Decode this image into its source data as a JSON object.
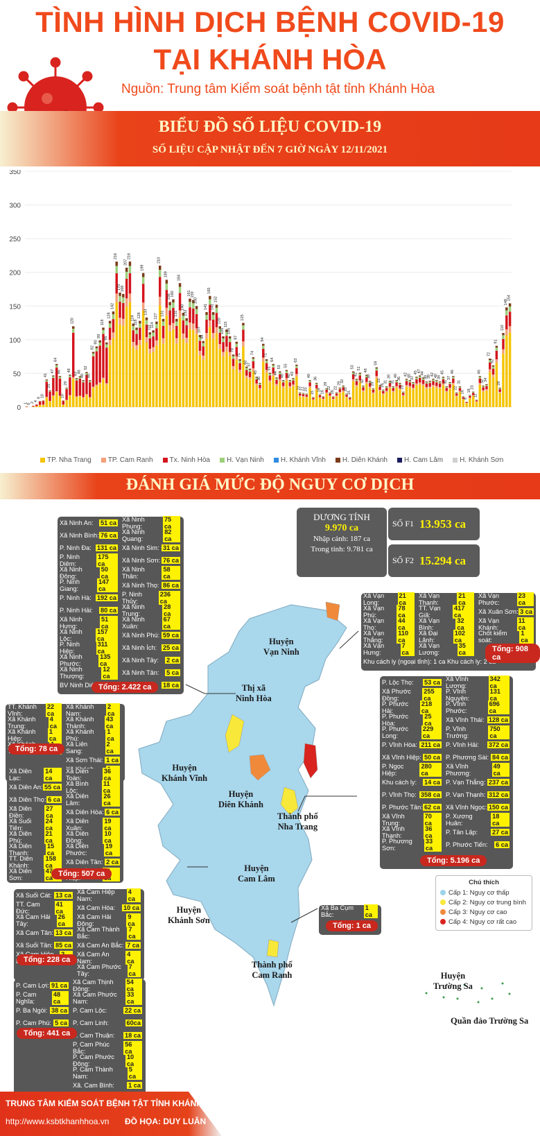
{
  "header": {
    "title_line1": "TÌNH HÌNH DỊCH BỆNH COVID-19",
    "title_line2": "TẠI KHÁNH HÒA",
    "source": "Nguồn: Trung tâm Kiểm soát bệnh tật tỉnh Khánh Hòa"
  },
  "section1": {
    "title": "BIỂU ĐỒ SỐ LIỆU COVID-19",
    "subtitle": "SỐ LIỆU CẬP NHẬT ĐẾN 7 GIỜ NGÀY 12/11/2021"
  },
  "chart_data": {
    "type": "bar",
    "stacked": true,
    "ylim": [
      0,
      350
    ],
    "yticks": [
      0,
      50,
      100,
      150,
      200,
      250,
      300,
      350
    ],
    "grid": true,
    "legend_position": "bottom",
    "legend": [
      "TP. Nha Trang",
      "TP. Cam Ranh",
      "Tx. Ninh Hòa",
      "H. Vạn Ninh",
      "H. Khánh Vĩnh",
      "H. Diên Khánh",
      "H. Cam Lâm",
      "H. Khánh Sơn"
    ],
    "colors": [
      "#f5c400",
      "#f4a07a",
      "#d4151e",
      "#9ccf7a",
      "#2f8be0",
      "#7a3b1a",
      "#1a1a5e",
      "#cfcfcf"
    ],
    "totals": [
      1,
      0,
      2,
      4,
      9,
      10,
      41,
      25,
      47,
      64,
      46,
      10,
      29,
      48,
      120,
      43,
      46,
      40,
      52,
      40,
      82,
      90,
      99,
      118,
      96,
      128,
      142,
      216,
      170,
      168,
      207,
      216,
      124,
      118,
      128,
      199,
      133,
      111,
      114,
      127,
      210,
      131,
      189,
      156,
      160,
      131,
      184,
      140,
      132,
      161,
      159,
      150,
      107,
      98,
      141,
      165,
      141,
      152,
      120,
      105,
      115,
      105,
      78,
      97,
      71,
      125,
      60,
      57,
      74,
      45,
      36,
      94,
      71,
      51,
      64,
      44,
      53,
      40,
      55,
      40,
      43,
      63,
      22,
      21,
      20,
      40,
      15,
      36,
      19,
      16,
      28,
      22,
      16,
      22,
      29,
      32,
      20,
      15,
      53,
      42,
      51,
      32,
      48,
      39,
      28,
      59,
      33,
      26,
      31,
      39,
      31,
      40,
      36,
      23,
      42,
      40,
      37,
      45,
      47,
      44,
      38,
      39,
      42,
      40,
      38,
      45,
      31,
      37,
      46,
      22,
      31,
      16,
      8,
      18,
      23,
      11,
      46,
      32,
      34,
      72,
      62,
      91,
      29,
      110,
      148,
      154
    ],
    "top_labels_note": "values printed above bars"
  },
  "section2": {
    "title": "ĐÁNH GIÁ MỨC ĐỘ NGUY CƠ DỊCH"
  },
  "stats": {
    "positive_label": "DƯƠNG TÍNH",
    "positive_value": "9.970 ca",
    "imported": "Nhập cảnh: 187 ca",
    "local": "Trong tỉnh: 9.781 ca",
    "f1_label": "SỐ F1",
    "f1_value": "13.953 ca",
    "f2_label": "SỐ F2",
    "f2_value": "15.294 ca"
  },
  "ninhhoa": {
    "rows": [
      [
        "Xã Ninh An:",
        "51 ca",
        "Xã Ninh Phụng:",
        "75 ca"
      ],
      [
        "Xã Ninh Bình:",
        "76 ca",
        "Xã Ninh Quang:",
        "82 ca"
      ],
      [
        "P. Ninh Đa:",
        "131 ca",
        "Xã Ninh Sim:",
        "31 ca"
      ],
      [
        "P. Ninh Diêm:",
        "175 ca",
        "Xã Ninh Sơn:",
        "76 ca"
      ],
      [
        "Xã Ninh Đông:",
        "50 ca",
        "Xã Ninh Thân:",
        "58 ca"
      ],
      [
        "P. Ninh Giang:",
        "147 ca",
        "Xã Ninh Thọ:",
        "86 ca"
      ],
      [
        "P. Ninh Hà:",
        "192 ca",
        "P. Ninh Thủy:",
        "236 ca"
      ],
      [
        "P. Ninh Hải:",
        "80 ca",
        "Xã Ninh Trung:",
        "28 ca"
      ],
      [
        "Xã Ninh Hưng:",
        "51 ca",
        "Xã Ninh Xuân:",
        "67 ca"
      ],
      [
        "Xã Ninh Lộc:",
        "157 ca",
        "Xã Ninh Phú:",
        "59 ca"
      ],
      [
        "P. Ninh Hiệp:",
        "311 ca",
        "Xã Ninh Ích:",
        "25 ca"
      ],
      [
        "Xã Ninh Phước:",
        "135 ca",
        "Xã Ninh Tây:",
        "2 ca"
      ],
      [
        "Xã Ninh Thượng:",
        "12 ca",
        "Xã Ninh Tân:",
        "5 ca"
      ],
      [
        "BV Ninh Diêm:",
        "6 ca",
        "Ninh Vân:",
        "18 ca"
      ]
    ],
    "total": "Tổng: 2.422 ca"
  },
  "vanninh": {
    "rows": [
      [
        "Xã Vạn Long:",
        "21 ca",
        "Xã Vạn Thạnh:",
        "21 ca",
        "Xã Vạn Phước:",
        "23 ca"
      ],
      [
        "Xã Vạn Phú:",
        "78 ca",
        "TT. Vạn Giã:",
        "417 ca",
        "Xã Xuân Sơn:",
        "3 ca"
      ],
      [
        "Xã Vạn Thọ:",
        "44 ca",
        "Xã Vạn Bình:",
        "32 ca",
        "Xã Vạn Khánh:",
        "11 ca"
      ],
      [
        "Xã Vạn Thắng:",
        "110 ca",
        "Xã Đại Lãnh:",
        "102 ca",
        "Chốt kiểm soát:",
        "1 ca"
      ],
      [
        "Xã Vạn Hưng:",
        "7 ca",
        "Xã Vạn Lương:",
        "35 ca",
        "",
        ""
      ]
    ],
    "last_row": "Khu cách ly (ngoại tỉnh): 1 ca   Khu cách ly: 2 ca",
    "total": "Tổng: 908 ca"
  },
  "khanhvinh": {
    "rows": [
      [
        "TT. Khánh Vĩnh:",
        "22 ca",
        "Xã Khánh Nam:",
        "2 ca"
      ],
      [
        "Xã Khánh Trung:",
        "4 ca",
        "Xã Khánh Thành:",
        "43 ca"
      ],
      [
        "Xã Khánh Hiệp:",
        "1 ca",
        "Xã Khánh Phú:",
        "1 ca"
      ],
      [
        "Xã Khánh Thượng:",
        "1 ca",
        "Xã Liên Sang:",
        "2 ca"
      ],
      [
        "",
        "",
        "Xã Sơn Thái:",
        "1 ca"
      ],
      [
        "",
        "",
        "Xã Khánh Bình:",
        "1 ca"
      ]
    ],
    "total": "Tổng: 78 ca"
  },
  "dienkhanh": {
    "rows": [
      [
        "Xã Diên Lạc:",
        "14 ca",
        "Xã Diên Toàn:",
        "36 ca"
      ],
      [
        "Xã Diên An:",
        "55 ca",
        "Xã Bình Lộc:",
        "11 ca"
      ],
      [
        "Xã Diên Thọ:",
        "6 ca",
        "Xã Diên Lâm:",
        "26 ca"
      ],
      [
        "Xã Diên Điền:",
        "27 ca",
        "Xã Diên Hòa:",
        "6 ca"
      ],
      [
        "Xã Suối Tiên:",
        "24 ca",
        "Xã Diên Xuân:",
        "19 ca"
      ],
      [
        "Xã Diên Phú:",
        "21 ca",
        "Xã Diên Đồng:",
        "10 ca"
      ],
      [
        "Xã Diên Thạnh:",
        "15 ca",
        "Xã Diên Phước:",
        "19 ca"
      ],
      [
        "TT. Diên Khánh:",
        "158 ca",
        "Xã Diên Tân:",
        "2 ca"
      ],
      [
        "Xã Diên Sơn:",
        "47 ca",
        "Xã Suối Hiệp:",
        "11 ca"
      ]
    ],
    "total": "Tổng: 507 ca"
  },
  "nhatrang": {
    "rows": [
      [
        "P. Lộc Thọ:",
        "53 ca",
        "Xã Vĩnh Lương:",
        "342 ca"
      ],
      [
        "Xã Phước Đồng:",
        "255 ca",
        "P. Vĩnh Nguyên:",
        "131 ca"
      ],
      [
        "P. Phước Hải:",
        "218 ca",
        "P. Vĩnh Phước:",
        "696 ca"
      ],
      [
        "P. Phước Hòa:",
        "25 ca",
        "Xã Vĩnh Thái:",
        "128 ca"
      ],
      [
        "P. Phước Long:",
        "229 ca",
        "P. Vĩnh Trường:",
        "750 ca"
      ],
      [
        "P. Vĩnh Hòa:",
        "211 ca",
        "P. Vĩnh Hải:",
        "372 ca"
      ],
      [
        "Xã Vĩnh Hiệp:",
        "50 ca",
        "P. Phương Sài:",
        "84 ca"
      ],
      [
        "P. Ngọc Hiệp:",
        "280 ca",
        "Xã Vĩnh Phương:",
        "49 ca"
      ],
      [
        "Khu cách ly:",
        "14 ca",
        "P. Vạn Thắng:",
        "237 ca"
      ],
      [
        "P. Vĩnh Thọ:",
        "358 ca",
        "P. Vạn Thạnh:",
        "312 ca"
      ],
      [
        "P. Phước Tân:",
        "62 ca",
        "Xã Vĩnh Ngọc:",
        "150 ca"
      ],
      [
        "Xã Vĩnh Trung:",
        "70 ca",
        "P. Xương Huân:",
        "18 ca"
      ],
      [
        "Xã Vĩnh Thạnh:",
        "36 ca",
        "P. Tân Lập:",
        "27 ca"
      ],
      [
        "P. Phương Sơn:",
        "33 ca",
        "P. Phước Tiến:",
        "6 ca"
      ]
    ],
    "total": "Tổng: 5.196 ca"
  },
  "camlam": {
    "rows": [
      [
        "Xã Suối Cát:",
        "13 ca",
        "Xã Cam Hiệp Nam:",
        "4 ca"
      ],
      [
        "TT. Cam Đức:",
        "41 ca",
        "Xã Cam Hòa:",
        "10 ca"
      ],
      [
        "Xã Cam Hải Tây:",
        "26 ca",
        "Xã Cam Hải Đông:",
        "9 ca"
      ],
      [
        "Xã Cam Tân:",
        "13 ca",
        "Xã Cam Thành Bắc:",
        "7 ca"
      ],
      [
        "Xã Suối Tân:",
        "85 ca",
        "Xã Cam An Bắc:",
        "7 ca"
      ],
      [
        "Xã Cam Hiệp Bắc:",
        "2 ca",
        "Xã Cam An Nam:",
        "4 ca"
      ],
      [
        "",
        "",
        "Xã Cam Phước Tây:",
        "7 ca"
      ]
    ],
    "total": "Tổng: 228 ca"
  },
  "khanhson": {
    "row": [
      "Xã Ba Cụm Bắc:",
      "1 ca"
    ],
    "total": "Tổng: 1 ca"
  },
  "camranh": {
    "rows": [
      [
        "P. Cam Lợi:",
        "91 ca",
        "Xã Cam Thịnh Đông:",
        "54 ca"
      ],
      [
        "P. Cam Nghĩa:",
        "48 ca",
        "Xã Cam Phước Nam:",
        "33 ca"
      ],
      [
        "P. Ba Ngòi:",
        "38 ca",
        "P. Cam Lộc:",
        "22 ca"
      ],
      [
        "P. Cam Phú:",
        "5 ca",
        "P. Cam Linh:",
        "60ca"
      ],
      [
        "",
        "",
        "P. Cam Thuận:",
        "18 ca"
      ],
      [
        "",
        "",
        "P. Cam Phúc Bắc:",
        "56 ca"
      ],
      [
        "",
        "",
        "P. Cam Phước Đông:",
        "10 ca"
      ],
      [
        "",
        "",
        "P. Cam Thành Nam:",
        "5 ca"
      ],
      [
        "",
        "",
        "Xã. Cam Bình:",
        "1 ca"
      ]
    ],
    "total": "Tổng: 441 ca"
  },
  "places": {
    "vanninh": "Huyện\nVạn Ninh",
    "ninhhoa": "Thị xã\nNinh Hòa",
    "khanhvinh": "Huyện\nKhánh Vĩnh",
    "dienkhanh": "Huyện\nDiên Khánh",
    "nhatrang": "Thành phố\nNha Trang",
    "camlam": "Huyện\nCam Lâm",
    "khanhson": "Huyện\nKhánh Sơn",
    "camranh": "Thành phố\nCam Ranh",
    "truongsa": "Huyện\nTrường Sa",
    "quandao": "Quần đảo Trường Sa"
  },
  "legend_map": {
    "title": "Chú thích",
    "items": [
      {
        "label": "Cấp 1: Nguy cơ thấp",
        "color": "#9dd3ea"
      },
      {
        "label": "Cấp 2: Nguy cơ trung bình",
        "color": "#f7e83a"
      },
      {
        "label": "Cấp 3: Nguy cơ cao",
        "color": "#f08a3a"
      },
      {
        "label": "Cấp 4: Nguy cơ rất cao",
        "color": "#d8231f"
      }
    ]
  },
  "footer": {
    "org": "TRUNG TÂM KIỂM SOÁT BỆNH TẬT TỈNH KHÁNH HÒA",
    "url": "http://www.ksbtkhanhhoa.vn",
    "design": "ĐỒ HỌA: DUY LUÂN"
  }
}
